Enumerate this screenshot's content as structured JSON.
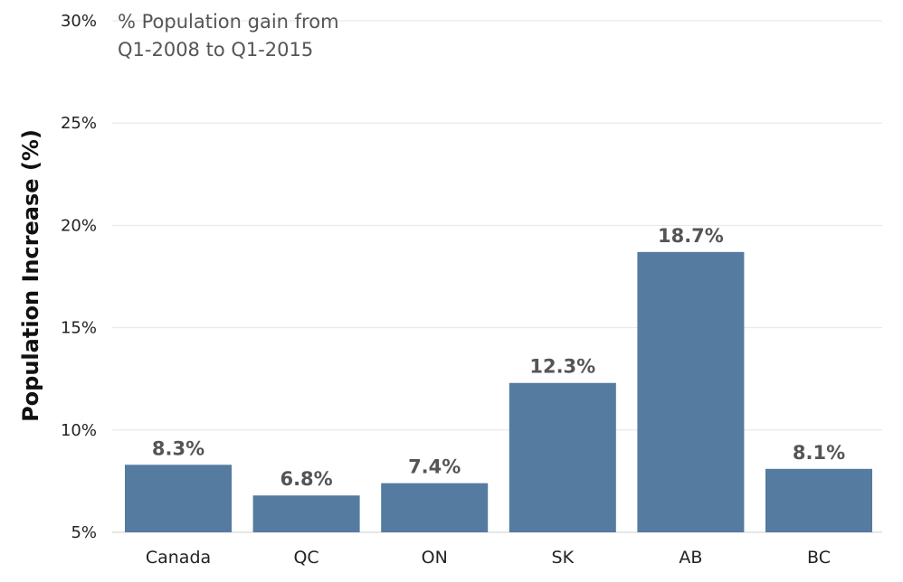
{
  "chart_data": {
    "type": "bar",
    "title_lines": [
      "% Population gain from",
      "Q1-2008 to Q1-2015"
    ],
    "xlabel": "",
    "ylabel": "Population Increase (%)",
    "categories": [
      "Canada",
      "QC",
      "ON",
      "SK",
      "AB",
      "BC"
    ],
    "values": [
      8.3,
      6.8,
      7.4,
      12.3,
      18.7,
      8.1
    ],
    "value_labels": [
      "8.3%",
      "6.8%",
      "7.4%",
      "12.3%",
      "18.7%",
      "8.1%"
    ],
    "ylim": [
      5,
      30
    ],
    "y_ticks": [
      5,
      10,
      15,
      20,
      25,
      30
    ],
    "y_tick_labels": [
      "5%",
      "10%",
      "15%",
      "20%",
      "25%",
      "30%"
    ],
    "grid": true,
    "colors": {
      "bar": "#557ba0"
    }
  }
}
